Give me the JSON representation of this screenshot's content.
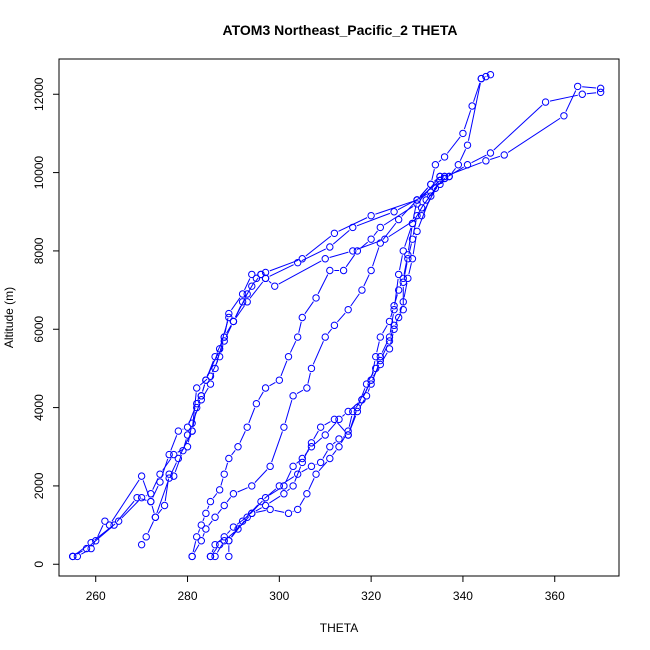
{
  "chart_data": {
    "type": "line",
    "title": "ATOM3 Northeast_Pacific_2 THETA",
    "xlabel": "THETA",
    "ylabel": "Altitude (m)",
    "xlim": [
      252,
      374
    ],
    "ylim": [
      -300,
      12900
    ],
    "xticks": [
      260,
      280,
      300,
      320,
      340,
      360
    ],
    "yticks": [
      0,
      2000,
      4000,
      6000,
      8000,
      10000,
      12000
    ],
    "grid": false,
    "legend": "none",
    "marker": "open-circle",
    "color": "#0000ff",
    "series": [
      {
        "points": [
          [
            255,
            200
          ],
          [
            256,
            200
          ],
          [
            259,
            400
          ],
          [
            260,
            600
          ],
          [
            262,
            1100
          ],
          [
            263,
            1000
          ],
          [
            270,
            2250
          ],
          [
            272,
            1600
          ],
          [
            274,
            2100
          ],
          [
            276,
            2800
          ],
          [
            278,
            3400
          ],
          [
            280,
            3500
          ],
          [
            282,
            4100
          ],
          [
            283,
            4300
          ],
          [
            284,
            4700
          ],
          [
            286,
            5300
          ],
          [
            288,
            5800
          ],
          [
            290,
            6200
          ],
          [
            292,
            6700
          ],
          [
            294,
            7100
          ],
          [
            296,
            7400
          ],
          [
            297,
            7450
          ],
          [
            305,
            7800
          ],
          [
            312,
            8450
          ],
          [
            320,
            8900
          ],
          [
            330,
            9300
          ],
          [
            335,
            9800
          ],
          [
            336,
            9900
          ],
          [
            345,
            10300
          ],
          [
            349,
            10450
          ],
          [
            362,
            11450
          ],
          [
            365,
            12200
          ],
          [
            370,
            12150
          ]
        ]
      },
      {
        "points": [
          [
            255,
            200
          ],
          [
            258,
            400
          ],
          [
            264,
            1000
          ],
          [
            269,
            1700
          ],
          [
            272,
            1600
          ],
          [
            273,
            1200
          ],
          [
            275,
            1500
          ],
          [
            276,
            2300
          ],
          [
            277,
            2250
          ],
          [
            279,
            2900
          ],
          [
            280,
            3300
          ],
          [
            281,
            3400
          ],
          [
            282,
            4500
          ],
          [
            285,
            4800
          ],
          [
            287,
            5300
          ],
          [
            288,
            5700
          ],
          [
            290,
            6200
          ],
          [
            293,
            6900
          ],
          [
            295,
            7300
          ],
          [
            297,
            7300
          ],
          [
            304,
            7700
          ],
          [
            311,
            8100
          ],
          [
            316,
            8600
          ],
          [
            325,
            9000
          ],
          [
            333,
            9500
          ],
          [
            336,
            9850
          ],
          [
            341,
            10200
          ],
          [
            346,
            10500
          ],
          [
            358,
            11800
          ],
          [
            366,
            12000
          ],
          [
            370,
            12050
          ]
        ]
      },
      {
        "points": [
          [
            255,
            200
          ],
          [
            259,
            550
          ],
          [
            265,
            1100
          ],
          [
            270,
            1700
          ],
          [
            272,
            1800
          ],
          [
            274,
            2300
          ],
          [
            277,
            2800
          ],
          [
            280,
            3000
          ],
          [
            281,
            3600
          ],
          [
            283,
            4200
          ],
          [
            285,
            4600
          ],
          [
            286,
            5000
          ],
          [
            288,
            5800
          ],
          [
            289,
            6400
          ],
          [
            292,
            6900
          ],
          [
            294,
            7400
          ],
          [
            296,
            7400
          ]
        ]
      },
      {
        "points": [
          [
            270,
            500
          ],
          [
            271,
            700
          ],
          [
            273,
            1200
          ],
          [
            276,
            2200
          ],
          [
            278,
            2700
          ],
          [
            281,
            3400
          ],
          [
            282,
            4000
          ],
          [
            283,
            4300
          ],
          [
            284,
            4700
          ],
          [
            287,
            5500
          ],
          [
            289,
            6300
          ],
          [
            290,
            6200
          ],
          [
            293,
            6700
          ],
          [
            297,
            7300
          ],
          [
            299,
            7100
          ],
          [
            310,
            7800
          ],
          [
            316,
            8000
          ],
          [
            323,
            8300
          ],
          [
            331,
            8900
          ],
          [
            335,
            9800
          ]
        ]
      },
      {
        "points": [
          [
            281,
            200
          ],
          [
            282,
            700
          ],
          [
            283,
            1000
          ],
          [
            284,
            1300
          ],
          [
            285,
            1600
          ],
          [
            287,
            1900
          ],
          [
            288,
            2300
          ],
          [
            289,
            2700
          ],
          [
            291,
            3000
          ],
          [
            293,
            3500
          ],
          [
            295,
            4100
          ],
          [
            297,
            4500
          ],
          [
            300,
            4700
          ],
          [
            302,
            5300
          ],
          [
            304,
            5800
          ],
          [
            305,
            6300
          ],
          [
            308,
            6800
          ],
          [
            311,
            7500
          ],
          [
            314,
            7500
          ],
          [
            317,
            8000
          ],
          [
            320,
            8300
          ],
          [
            322,
            8600
          ],
          [
            330,
            9200
          ],
          [
            335,
            9900
          ],
          [
            337,
            9900
          ],
          [
            339,
            10200
          ],
          [
            341,
            10700
          ],
          [
            344,
            12400
          ],
          [
            345,
            12450
          ]
        ]
      },
      {
        "points": [
          [
            281,
            200
          ],
          [
            283,
            600
          ],
          [
            284,
            900
          ],
          [
            286,
            1200
          ],
          [
            288,
            1500
          ],
          [
            290,
            1800
          ],
          [
            294,
            2000
          ],
          [
            298,
            2500
          ],
          [
            301,
            3500
          ],
          [
            303,
            4300
          ],
          [
            306,
            4500
          ],
          [
            307,
            5000
          ],
          [
            310,
            5800
          ],
          [
            312,
            6100
          ],
          [
            315,
            6500
          ],
          [
            318,
            7000
          ],
          [
            320,
            7500
          ],
          [
            322,
            8200
          ],
          [
            326,
            8800
          ],
          [
            330,
            9300
          ],
          [
            333,
            9700
          ],
          [
            334,
            10200
          ],
          [
            336,
            10400
          ],
          [
            340,
            11000
          ],
          [
            342,
            11700
          ],
          [
            344,
            12400
          ],
          [
            346,
            12500
          ]
        ]
      },
      {
        "points": [
          [
            285,
            200
          ],
          [
            286,
            500
          ],
          [
            288,
            700
          ],
          [
            290,
            950
          ],
          [
            294,
            1300
          ],
          [
            298,
            1400
          ],
          [
            302,
            1300
          ],
          [
            304,
            1400
          ],
          [
            306,
            1800
          ],
          [
            308,
            2300
          ],
          [
            311,
            2700
          ],
          [
            313,
            3000
          ],
          [
            315,
            3400
          ],
          [
            316,
            3900
          ],
          [
            318,
            4200
          ],
          [
            320,
            4700
          ],
          [
            321,
            5300
          ],
          [
            322,
            5800
          ],
          [
            324,
            6200
          ],
          [
            325,
            6600
          ],
          [
            326,
            7000
          ],
          [
            327,
            7300
          ],
          [
            328,
            7900
          ],
          [
            329,
            8700
          ],
          [
            330,
            9300
          ],
          [
            333,
            9700
          ],
          [
            335,
            9900
          ]
        ]
      },
      {
        "points": [
          [
            285,
            200
          ],
          [
            287,
            500
          ],
          [
            289,
            600
          ],
          [
            293,
            1200
          ],
          [
            297,
            1700
          ],
          [
            301,
            2000
          ],
          [
            303,
            2500
          ],
          [
            305,
            2700
          ],
          [
            307,
            3000
          ],
          [
            310,
            3300
          ],
          [
            313,
            3700
          ],
          [
            315,
            3900
          ],
          [
            318,
            4200
          ],
          [
            320,
            4700
          ],
          [
            322,
            5100
          ],
          [
            324,
            5500
          ],
          [
            325,
            6000
          ],
          [
            326,
            6300
          ],
          [
            327,
            6700
          ],
          [
            328,
            7300
          ],
          [
            329,
            7800
          ],
          [
            330,
            8500
          ],
          [
            333,
            9400
          ],
          [
            335,
            9800
          ],
          [
            337,
            9900
          ]
        ]
      },
      {
        "points": [
          [
            286,
            200
          ],
          [
            288,
            600
          ],
          [
            291,
            900
          ],
          [
            294,
            1300
          ],
          [
            297,
            1500
          ],
          [
            301,
            1800
          ],
          [
            303,
            2000
          ],
          [
            305,
            2600
          ],
          [
            307,
            3100
          ],
          [
            309,
            3500
          ],
          [
            312,
            3700
          ],
          [
            315,
            3300
          ],
          [
            317,
            4000
          ],
          [
            319,
            4600
          ],
          [
            321,
            5000
          ],
          [
            322,
            5300
          ],
          [
            324,
            5800
          ],
          [
            325,
            6500
          ],
          [
            326,
            7400
          ],
          [
            327,
            8000
          ],
          [
            329,
            8700
          ],
          [
            331,
            9100
          ],
          [
            334,
            9600
          ],
          [
            336,
            9850
          ]
        ]
      },
      {
        "points": [
          [
            289,
            200
          ],
          [
            289,
            600
          ],
          [
            292,
            1100
          ],
          [
            296,
            1600
          ],
          [
            300,
            2000
          ],
          [
            304,
            2300
          ],
          [
            307,
            2500
          ],
          [
            309,
            2600
          ],
          [
            311,
            3000
          ],
          [
            313,
            3200
          ],
          [
            315,
            3300
          ],
          [
            317,
            3900
          ],
          [
            319,
            4300
          ],
          [
            320,
            4600
          ],
          [
            322,
            5200
          ],
          [
            324,
            5700
          ],
          [
            325,
            6100
          ],
          [
            327,
            6500
          ],
          [
            327,
            7200
          ],
          [
            328,
            7800
          ],
          [
            329,
            8300
          ],
          [
            330,
            8900
          ],
          [
            332,
            9300
          ],
          [
            335,
            9700
          ],
          [
            336,
            9900
          ]
        ]
      }
    ]
  }
}
